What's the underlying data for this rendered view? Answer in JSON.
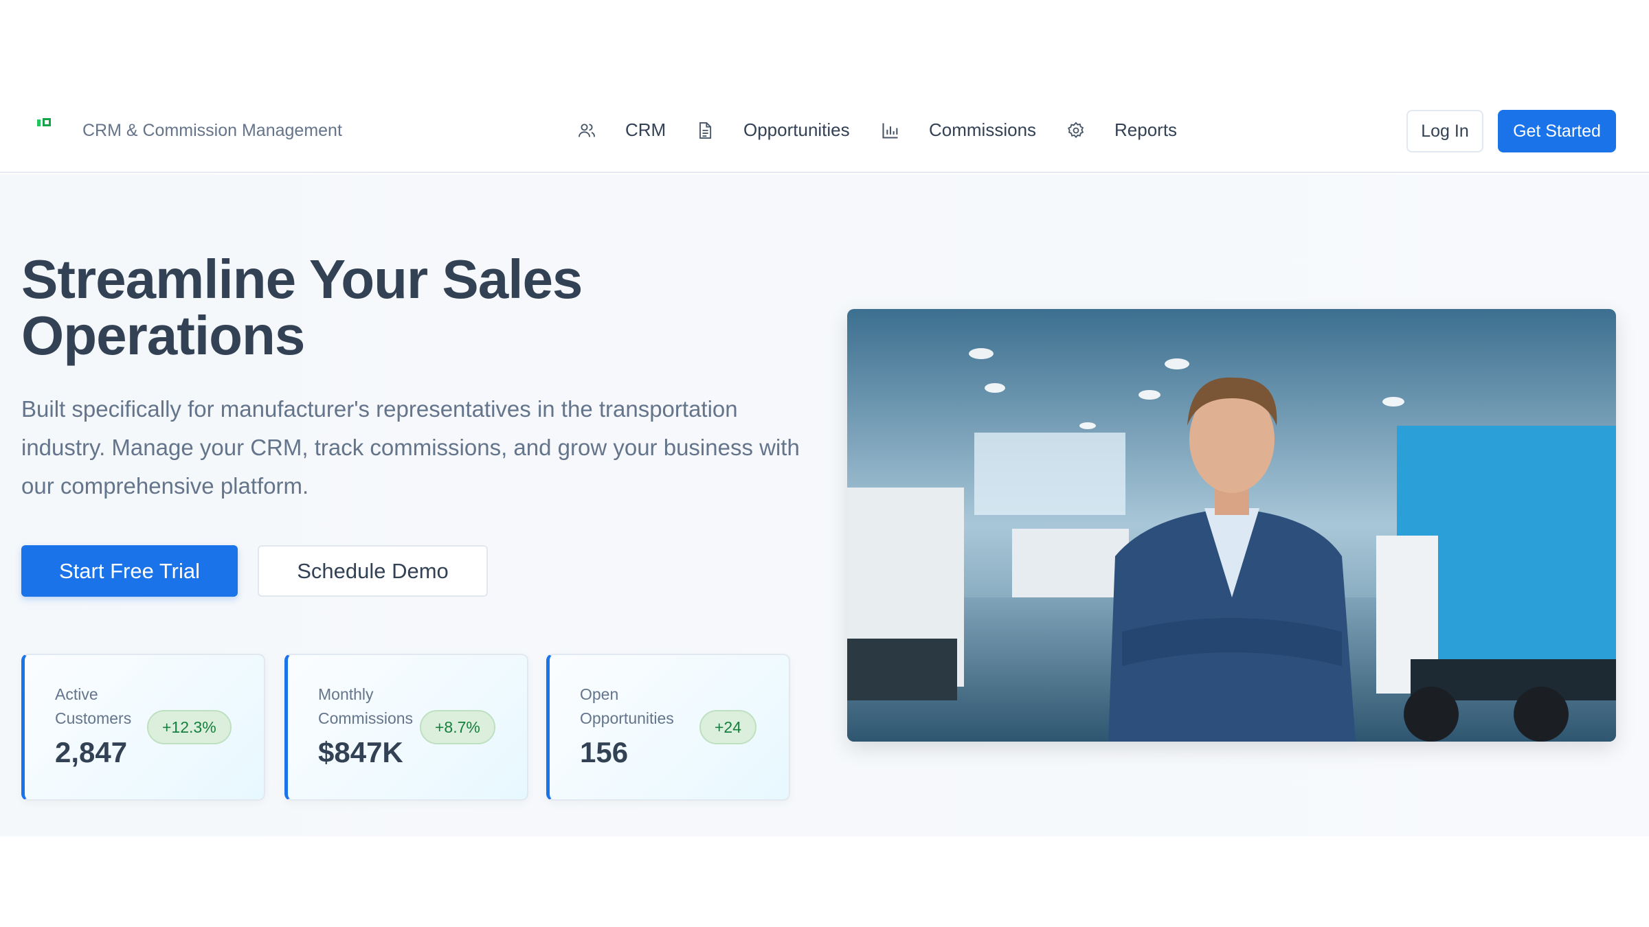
{
  "header": {
    "app_title": "CRM & Commission Management",
    "nav": [
      {
        "label": "CRM",
        "icon": "users-icon"
      },
      {
        "label": "Opportunities",
        "icon": "document-icon"
      },
      {
        "label": "Commissions",
        "icon": "bar-chart-icon"
      },
      {
        "label": "Reports",
        "icon": "gear-icon"
      }
    ],
    "login_label": "Log In",
    "get_started_label": "Get Started"
  },
  "hero": {
    "title": "Streamline Your Sales Operations",
    "description": "Built specifically for manufacturer's representatives in the transportation industry. Manage your CRM, track commissions, and grow your business with our comprehensive platform.",
    "primary_cta": "Start Free Trial",
    "secondary_cta": "Schedule Demo"
  },
  "stats": [
    {
      "label": "Active Customers",
      "value": "2,847",
      "change": "+12.3%"
    },
    {
      "label": "Monthly Commissions",
      "value": "$847K",
      "change": "+8.7%"
    },
    {
      "label": "Open Opportunities",
      "value": "156",
      "change": "+24"
    }
  ],
  "colors": {
    "accent": "#1a73e8",
    "positive": "#15803d"
  }
}
